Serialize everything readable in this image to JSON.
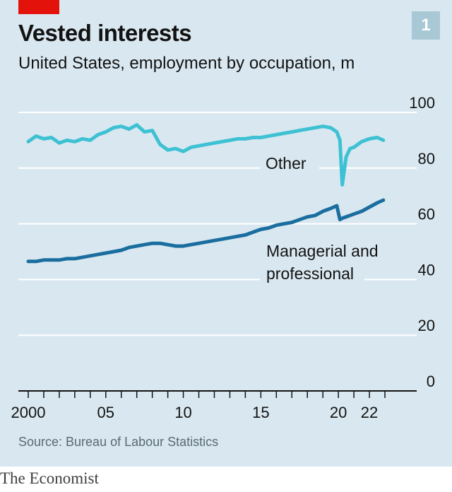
{
  "header": {
    "title": "Vested interests",
    "subtitle": "United States, employment by occupation, m",
    "chart_number": "1"
  },
  "footer": {
    "source": "Source: Bureau of Labour Statistics",
    "brand": "The Economist"
  },
  "colors": {
    "background": "#d9e8f0",
    "accent": "#e3120b",
    "other": "#3ec1d3",
    "managerial": "#1a6e9f",
    "gridline": "#ffffff",
    "axis": "#121212"
  },
  "chart_data": {
    "type": "line",
    "title": "Vested interests",
    "subtitle": "United States, employment by occupation, m",
    "xlabel": "",
    "ylabel": "",
    "ylim": [
      0,
      100
    ],
    "xlim": [
      2000,
      2023
    ],
    "y_ticks": [
      "0",
      "20",
      "40",
      "60",
      "80",
      "100"
    ],
    "x_ticks": [
      {
        "value": 2000,
        "label": "2000"
      },
      {
        "value": 2005,
        "label": "05"
      },
      {
        "value": 2010,
        "label": "10"
      },
      {
        "value": 2015,
        "label": "15"
      },
      {
        "value": 2020,
        "label": "20"
      },
      {
        "value": 2022,
        "label": "22"
      }
    ],
    "series": [
      {
        "name": "Other",
        "label": "Other",
        "color": "#3ec1d3",
        "x": [
          2000.0,
          2000.5,
          2001.0,
          2001.5,
          2002.0,
          2002.5,
          2003.0,
          2003.5,
          2004.0,
          2004.5,
          2005.0,
          2005.5,
          2006.0,
          2006.5,
          2007.0,
          2007.5,
          2008.0,
          2008.5,
          2009.0,
          2009.5,
          2010.0,
          2010.5,
          2011.0,
          2011.5,
          2012.0,
          2012.5,
          2013.0,
          2013.5,
          2014.0,
          2014.5,
          2015.0,
          2015.5,
          2016.0,
          2016.5,
          2017.0,
          2017.5,
          2018.0,
          2018.5,
          2019.0,
          2019.5,
          2019.9,
          2020.1,
          2020.25,
          2020.35,
          2020.5,
          2020.75,
          2021.0,
          2021.5,
          2022.0,
          2022.5,
          2022.9
        ],
        "values": [
          89.5,
          91.5,
          90.5,
          91.0,
          89.0,
          90.0,
          89.5,
          90.5,
          90.0,
          92.0,
          93.0,
          94.5,
          95.0,
          94.0,
          95.5,
          93.0,
          93.5,
          88.5,
          86.5,
          87.0,
          86.0,
          87.5,
          88.0,
          88.5,
          89.0,
          89.5,
          90.0,
          90.5,
          90.5,
          91.0,
          91.0,
          91.5,
          92.0,
          92.5,
          93.0,
          93.5,
          94.0,
          94.5,
          95.0,
          94.5,
          93.0,
          90.0,
          74.0,
          78.0,
          84.0,
          87.0,
          87.5,
          89.5,
          90.5,
          91.0,
          90.0
        ]
      },
      {
        "name": "Managerial and professional",
        "label": "Managerial and professional",
        "color": "#1a6e9f",
        "x": [
          2000.0,
          2000.5,
          2001.0,
          2001.5,
          2002.0,
          2002.5,
          2003.0,
          2003.5,
          2004.0,
          2004.5,
          2005.0,
          2005.5,
          2006.0,
          2006.5,
          2007.0,
          2007.5,
          2008.0,
          2008.5,
          2009.0,
          2009.5,
          2010.0,
          2010.5,
          2011.0,
          2011.5,
          2012.0,
          2012.5,
          2013.0,
          2013.5,
          2014.0,
          2014.5,
          2015.0,
          2015.5,
          2016.0,
          2016.5,
          2017.0,
          2017.5,
          2018.0,
          2018.5,
          2019.0,
          2019.5,
          2019.9,
          2020.1,
          2020.25,
          2020.5,
          2020.75,
          2021.0,
          2021.5,
          2022.0,
          2022.5,
          2022.9
        ],
        "values": [
          46.5,
          46.5,
          47.0,
          47.0,
          47.0,
          47.5,
          47.5,
          48.0,
          48.5,
          49.0,
          49.5,
          50.0,
          50.5,
          51.5,
          52.0,
          52.5,
          53.0,
          53.0,
          52.5,
          52.0,
          52.0,
          52.5,
          53.0,
          53.5,
          54.0,
          54.5,
          55.0,
          55.5,
          56.0,
          57.0,
          58.0,
          58.5,
          59.5,
          60.0,
          60.5,
          61.5,
          62.5,
          63.0,
          64.5,
          65.5,
          66.5,
          61.5,
          62.0,
          62.5,
          63.0,
          63.5,
          64.5,
          66.0,
          67.5,
          68.5
        ]
      }
    ],
    "grid": true,
    "legend": "direct-labels"
  }
}
